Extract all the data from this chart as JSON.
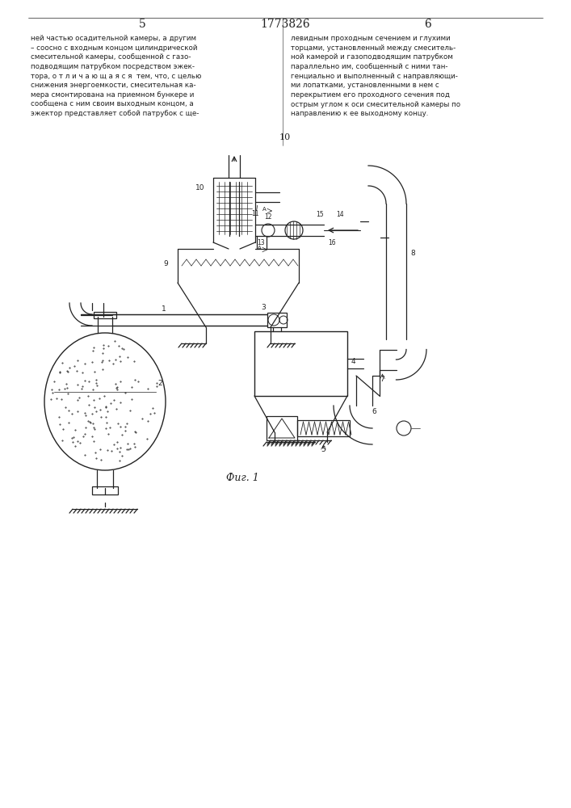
{
  "title": "1773826",
  "page_left": "5",
  "page_right": "6",
  "fig_label": "Фиг. 1",
  "text_left": "ней частью осадительной камеры, а другим\n– соосно с входным концом цилиндрической\nсмесительной камеры, сообщенной с газо-\nподводящим патрубком посредством эжек-\nтора, о т л и ч а ю щ а я с я  тем, что, с целью\nснижения энергоемкости, смесительная ка-\nмера смонтирована на приемном бункере и\nсообщена с ним своим выходным концом, а\nэжектор представляет собой патрубок с ще-",
  "text_right": "левидным проходным сечением и глухими\nторцами, установленный между смеситель-\nной камерой и газоподводящим патрубком\nпараллельно им, сообщенный с ними тан-\nгенциально и выполненный с направляющи-\nми лопатками, установленными в нем с\nперекрытием его проходного сечения под\nострым углом к оси смесительной камеры по\nнаправлению к ее выходному концу.",
  "line_number": "10",
  "bg_color": "#ffffff",
  "line_color": "#222222"
}
